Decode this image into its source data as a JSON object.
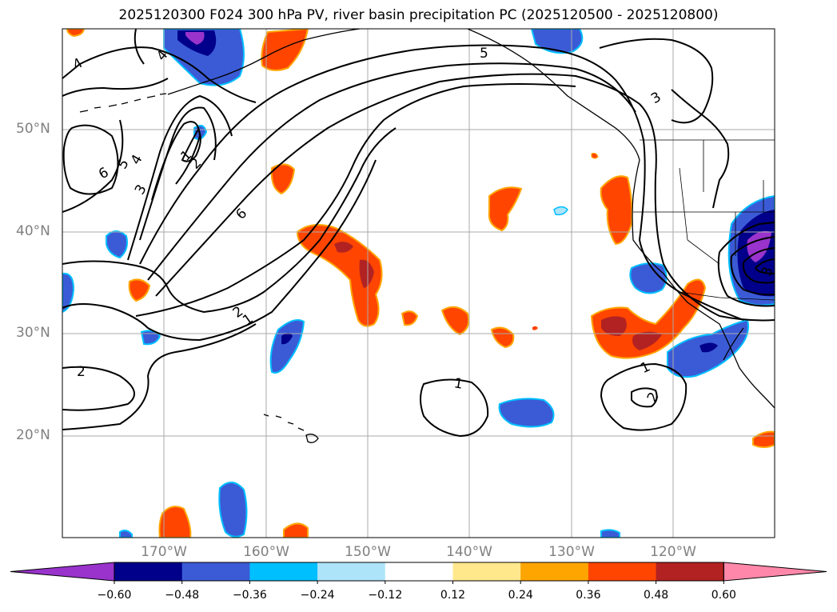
{
  "title": "2025120300 F024 300 hPa PV, river basin precipitation PC (2025120500 - 2025120800)",
  "map": {
    "lon_range": [
      -180,
      -110
    ],
    "lat_range": [
      10,
      60
    ],
    "lat_labels": [
      "50°N",
      "40°N",
      "30°N",
      "20°N"
    ],
    "lon_labels": [
      "170°W",
      "160°W",
      "150°W",
      "140°W",
      "130°W",
      "120°W"
    ],
    "contour_labels": [
      "4",
      "4",
      "5",
      "3",
      "6",
      "5",
      "4",
      "3",
      "2",
      "1",
      "6",
      "2",
      "1",
      "2",
      "1",
      "1",
      "2",
      "3"
    ]
  },
  "colorbar": {
    "colors": [
      "#9933cc",
      "#00008b",
      "#3b5bd6",
      "#00bfff",
      "#aee4fa",
      "#ffffff",
      "#ffe88c",
      "#ffa500",
      "#ff4500",
      "#b22222",
      "#ff88aa"
    ],
    "labels": [
      "−0.60",
      "−0.48",
      "−0.36",
      "−0.24",
      "−0.12",
      "0.12",
      "0.24",
      "0.36",
      "0.48",
      "0.60"
    ]
  }
}
